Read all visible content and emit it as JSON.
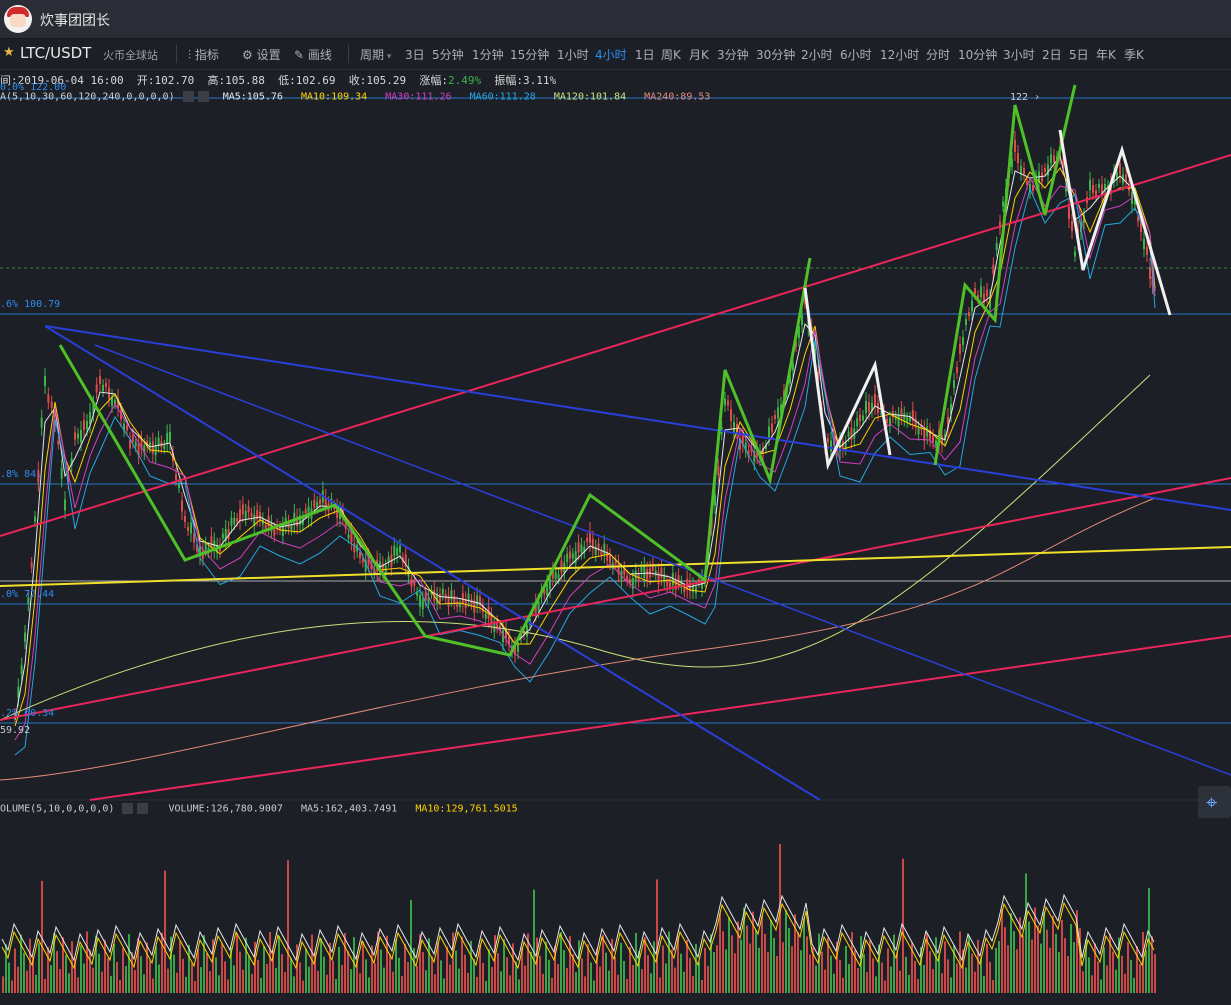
{
  "header": {
    "username": "炊事团团长"
  },
  "symbol": {
    "pair": "LTC/USDT",
    "exchange": "火币全球站"
  },
  "toolbar": {
    "indicator": "指标",
    "settings": "设置",
    "draw": "画线"
  },
  "periods": {
    "label": "周期",
    "items": [
      "3日",
      "5分钟",
      "1分钟",
      "15分钟",
      "1小时",
      "4小时",
      "1日",
      "周K",
      "月K",
      "3分钟",
      "30分钟",
      "2小时",
      "6小时",
      "12小时",
      "分时",
      "10分钟",
      "3小时",
      "2日",
      "5日",
      "年K",
      "季K"
    ],
    "active": "4小时"
  },
  "ohlc": {
    "time": "间:2019-06-04 16:00",
    "open_label": "开:",
    "open": "102.70",
    "high_label": "高:",
    "high": "105.88",
    "low_label": "低:",
    "low": "102.69",
    "close_label": "收:",
    "close": "105.29",
    "change_label": "涨幅:",
    "change": "2.49%",
    "amp_label": "振幅:",
    "amp": "3.11%"
  },
  "ma": {
    "params": "A(5,10,30,60,120,240,0,0,0,0)",
    "ma5": "MA5:105.76",
    "ma10": "MA10:109.34",
    "ma30": "MA30:111.26",
    "ma60": "MA60:111.28",
    "ma120": "MA120:101.84",
    "ma240": "MA240:89.53"
  },
  "levels": {
    "top": "0.0% 122.00",
    "l1": ".6% 100.79",
    "l2": ".8% 84.",
    "l3": ".0% 72.44",
    "l4": ".2% 60.34",
    "low_price": "59.92",
    "marker": "122"
  },
  "volume": {
    "params": "OLUME(5,10,0,0,0,0)",
    "vol": "VOLUME:126,780.9007",
    "ma5": "MA5:162,403.7491",
    "ma10": "MA10:129,761.5015"
  },
  "colors": {
    "ma5": "#e6e6e6",
    "ma10": "#ffd400",
    "ma30": "#d23fc0",
    "ma60": "#25a8e0",
    "ma120": "#c9e37a",
    "ma240": "#e58a7a",
    "up": "#3bb54a",
    "down": "#e04b4b",
    "fib": "#2d8cf0"
  },
  "icons": [
    "star-icon",
    "indicator-icon",
    "gear-icon",
    "pencil-icon",
    "chevron-down-icon",
    "crosshair-icon"
  ]
}
